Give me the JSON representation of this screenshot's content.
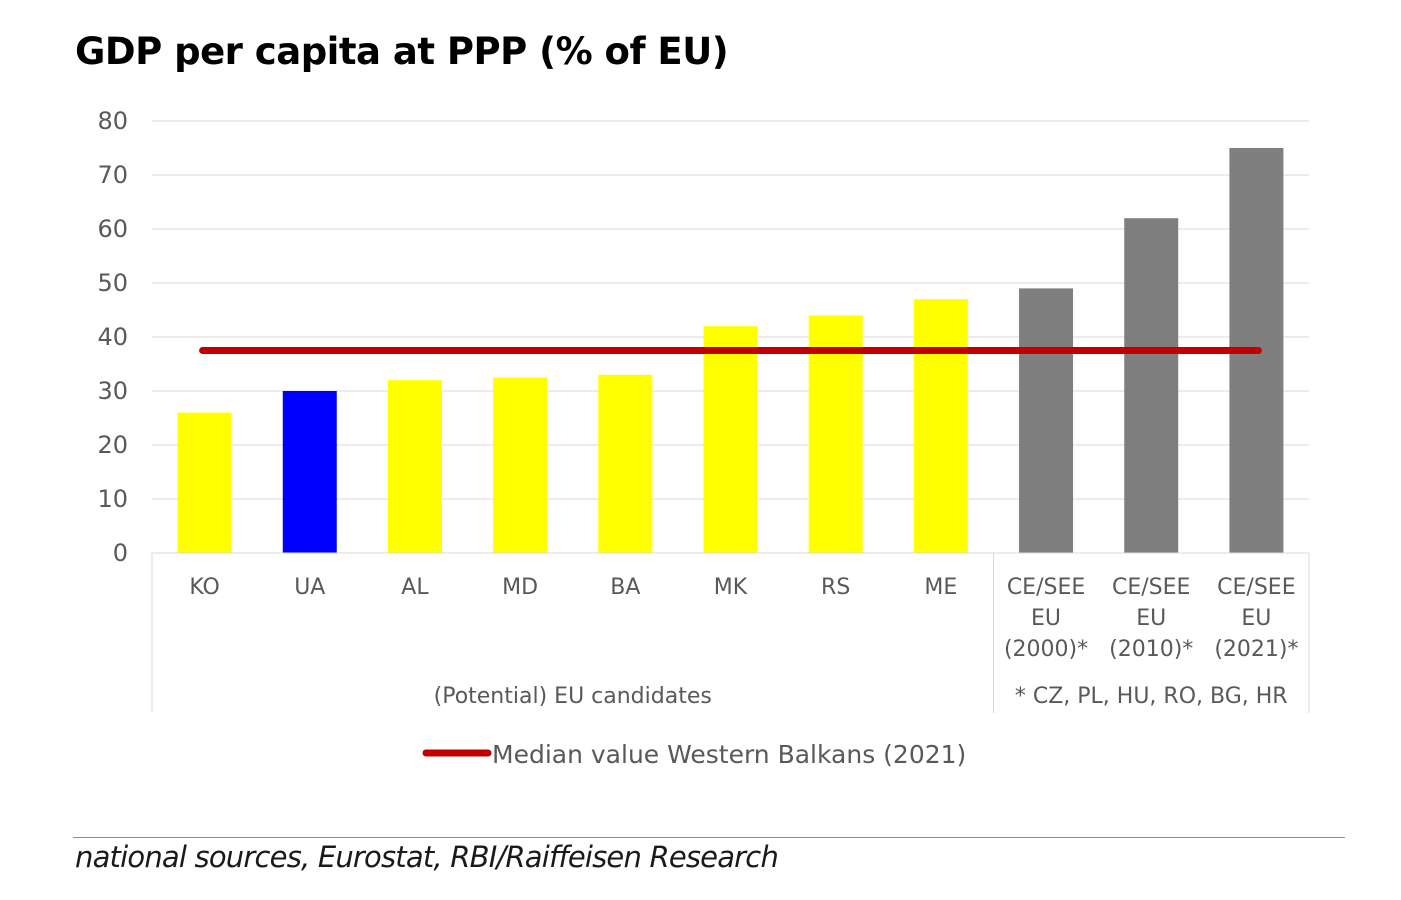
{
  "chart_data": {
    "type": "bar",
    "title": "GDP per capita at PPP (% of EU)",
    "categories": [
      [
        "KO"
      ],
      [
        "UA"
      ],
      [
        "AL"
      ],
      [
        "MD"
      ],
      [
        "BA"
      ],
      [
        "MK"
      ],
      [
        "RS"
      ],
      [
        "ME"
      ],
      [
        "CE/SEE",
        "EU",
        "(2000)*"
      ],
      [
        "CE/SEE",
        "EU",
        "(2010)*"
      ],
      [
        "CE/SEE",
        "EU",
        "(2021)*"
      ]
    ],
    "values": [
      26,
      30,
      32,
      32.5,
      33,
      42,
      44,
      47,
      49,
      62,
      75
    ],
    "bar_colors": [
      "#ffff00",
      "#0000ff",
      "#ffff00",
      "#ffff00",
      "#ffff00",
      "#ffff00",
      "#ffff00",
      "#ffff00",
      "#7f7f7f",
      "#7f7f7f",
      "#7f7f7f"
    ],
    "groups": [
      {
        "label": "(Potential) EU candidates",
        "from": 0,
        "to": 7
      },
      {
        "label": "* CZ, PL, HU, RO, BG, HR",
        "from": 8,
        "to": 10
      }
    ],
    "reference_line": {
      "name": "Median value Western Balkans (2021)",
      "value": 37.5,
      "color": "#c00000"
    },
    "ylim": [
      0,
      80
    ],
    "yticks": [
      0,
      10,
      20,
      30,
      40,
      50,
      60,
      70,
      80
    ],
    "grid": true,
    "legend": "bottom-center"
  },
  "source": "national sources, Eurostat, RBI/Raiffeisen Research"
}
